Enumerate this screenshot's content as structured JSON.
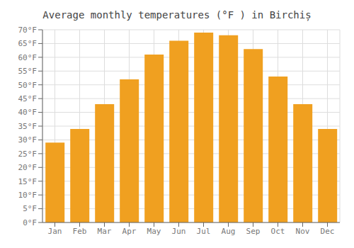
{
  "chart_data": {
    "type": "bar",
    "title": "Average monthly temperatures (°F ) in Birchiș",
    "categories": [
      "Jan",
      "Feb",
      "Mar",
      "Apr",
      "May",
      "Jun",
      "Jul",
      "Aug",
      "Sep",
      "Oct",
      "Nov",
      "Dec"
    ],
    "values": [
      29,
      34,
      43,
      52,
      61,
      66,
      69,
      68,
      63,
      53,
      43,
      34
    ],
    "color": "#F0A020",
    "ylim": [
      0,
      70
    ],
    "yticks": [
      {
        "value": 0,
        "label": "0°F"
      },
      {
        "value": 5,
        "label": "5°F"
      },
      {
        "value": 10,
        "label": "10°F"
      },
      {
        "value": 15,
        "label": "15°F"
      },
      {
        "value": 20,
        "label": "20°F"
      },
      {
        "value": 25,
        "label": "25°F"
      },
      {
        "value": 30,
        "label": "30°F"
      },
      {
        "value": 35,
        "label": "35°F"
      },
      {
        "value": 40,
        "label": "40°F"
      },
      {
        "value": 45,
        "label": "45°F"
      },
      {
        "value": 50,
        "label": "50°F"
      },
      {
        "value": 55,
        "label": "55°F"
      },
      {
        "value": 60,
        "label": "60°F"
      },
      {
        "value": 65,
        "label": "65°F"
      },
      {
        "value": 70,
        "label": "70°F"
      }
    ],
    "grid": true
  }
}
